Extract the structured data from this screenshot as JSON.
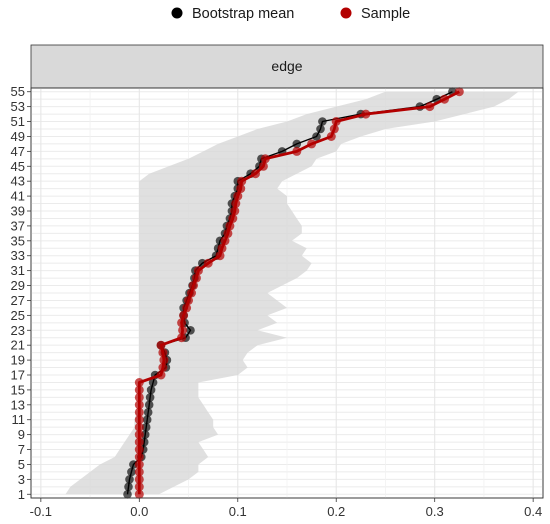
{
  "chart_data": {
    "type": "line",
    "facet_label": "edge",
    "legend": {
      "position": "top",
      "items": [
        {
          "label": "Bootstrap mean",
          "color": "#000000"
        },
        {
          "label": "Sample",
          "color": "#b30000"
        }
      ]
    },
    "xlim": [
      -0.11,
      0.41
    ],
    "ylim": [
      0.5,
      55.5
    ],
    "x_ticks": [
      -0.1,
      0,
      0.1,
      0.2,
      0.3,
      0.4
    ],
    "x_tick_labels": [
      "-0.1",
      "0.0",
      "0.1",
      "0.2",
      "0.3",
      "0.4"
    ],
    "y_ticks": [
      1,
      3,
      5,
      7,
      9,
      11,
      13,
      15,
      17,
      19,
      21,
      23,
      25,
      27,
      29,
      31,
      33,
      35,
      37,
      39,
      41,
      43,
      45,
      47,
      49,
      51,
      53,
      55
    ],
    "y_tick_labels": [
      "1",
      "3",
      "5",
      "7",
      "9",
      "11",
      "13",
      "15",
      "17",
      "19",
      "21",
      "23",
      "25",
      "27",
      "29",
      "31",
      "33",
      "35",
      "37",
      "39",
      "41",
      "43",
      "45",
      "47",
      "49",
      "51",
      "53",
      "55"
    ],
    "grid": true,
    "band_color": "#d6d6d6",
    "series": [
      {
        "name": "Bootstrap mean",
        "color": "#000000",
        "values": [
          -0.012,
          -0.011,
          -0.01,
          -0.008,
          -0.006,
          0.002,
          0.004,
          0.005,
          0.006,
          0.007,
          0.008,
          0.009,
          0.01,
          0.011,
          0.012,
          0.014,
          0.016,
          0.027,
          0.028,
          0.026,
          0.022,
          0.047,
          0.052,
          0.046,
          0.045,
          0.045,
          0.048,
          0.051,
          0.054,
          0.056,
          0.057,
          0.064,
          0.078,
          0.08,
          0.082,
          0.087,
          0.089,
          0.092,
          0.094,
          0.094,
          0.097,
          0.1,
          0.1,
          0.113,
          0.122,
          0.124,
          0.145,
          0.16,
          0.18,
          0.184,
          0.186,
          0.225,
          0.285,
          0.302,
          0.318
        ]
      },
      {
        "name": "Sample",
        "color": "#b30000",
        "values": [
          0.0,
          0.0,
          0.0,
          0.0,
          0.0,
          0.0,
          0.0,
          0.0,
          0.0,
          0.0,
          0.0,
          0.0,
          0.0,
          0.0,
          0.0,
          0.0,
          0.022,
          0.024,
          0.025,
          0.024,
          0.022,
          0.043,
          0.044,
          0.043,
          0.045,
          0.048,
          0.05,
          0.053,
          0.055,
          0.058,
          0.06,
          0.07,
          0.082,
          0.084,
          0.087,
          0.09,
          0.092,
          0.095,
          0.097,
          0.098,
          0.1,
          0.103,
          0.104,
          0.118,
          0.126,
          0.128,
          0.16,
          0.175,
          0.195,
          0.198,
          0.2,
          0.23,
          0.295,
          0.31,
          0.325
        ]
      }
    ],
    "band": {
      "lower": [
        -0.075,
        -0.07,
        -0.06,
        -0.05,
        -0.04,
        -0.025,
        -0.02,
        -0.015,
        -0.01,
        -0.005,
        -0.005,
        -0.003,
        0.0,
        0.0,
        0.0,
        0.0,
        0.0,
        0.0,
        0.0,
        0.0,
        0.0,
        0.0,
        0.0,
        0.0,
        0.0,
        0.0,
        0.0,
        0.0,
        0.0,
        0.0,
        0.0,
        0.0,
        0.0,
        0.0,
        0.0,
        0.0,
        0.0,
        0.0,
        0.0,
        0.0,
        0.0,
        0.0,
        0.0,
        0.01,
        0.03,
        0.05,
        0.065,
        0.08,
        0.1,
        0.12,
        0.15,
        0.17,
        0.2,
        0.23,
        0.25
      ],
      "upper": [
        0.02,
        0.035,
        0.05,
        0.06,
        0.06,
        0.07,
        0.065,
        0.06,
        0.08,
        0.075,
        0.075,
        0.07,
        0.065,
        0.06,
        0.06,
        0.06,
        0.1,
        0.11,
        0.105,
        0.11,
        0.12,
        0.15,
        0.12,
        0.14,
        0.13,
        0.15,
        0.14,
        0.13,
        0.145,
        0.16,
        0.17,
        0.175,
        0.165,
        0.17,
        0.155,
        0.165,
        0.165,
        0.16,
        0.155,
        0.15,
        0.15,
        0.14,
        0.145,
        0.16,
        0.175,
        0.18,
        0.2,
        0.205,
        0.225,
        0.25,
        0.3,
        0.33,
        0.36,
        0.375,
        0.385
      ]
    }
  }
}
